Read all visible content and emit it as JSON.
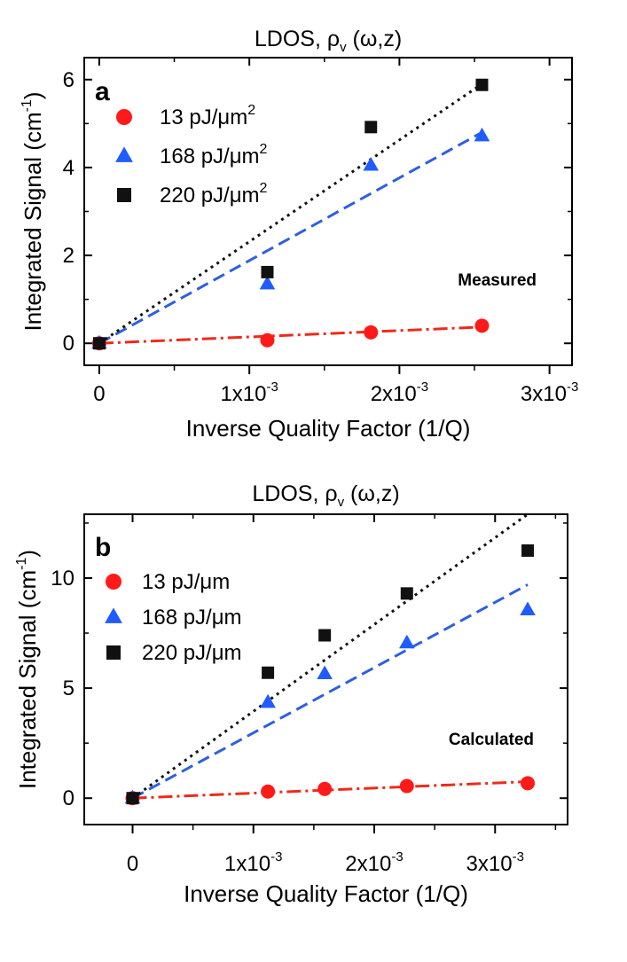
{
  "colors": {
    "red": "#ff1a1a",
    "blue": "#1f5cff",
    "black": "#111111",
    "dash_red": "#ee2a1a",
    "dash_blue": "#2e5fe0"
  },
  "chart_data": [
    {
      "type": "scatter",
      "panel": "a",
      "title_text": "LDOS, ",
      "title_symbol": "ρ",
      "title_subscript": "v",
      "title_args": " (ω,z)",
      "xlabel": "Inverse Quality Factor (1/Q)",
      "ylabel": "Integrated Signal (cm",
      "ylabel_exponent": "-1",
      "ylabel_close": ")",
      "xlim": [
        -0.0001,
        0.00315
      ],
      "ylim": [
        -0.5,
        6.5
      ],
      "yticks": [
        0,
        2,
        4,
        6
      ],
      "ytick_labels": [
        "0",
        "2",
        "4",
        "6"
      ],
      "xticks": [
        0,
        0.001,
        0.002,
        0.003
      ],
      "xtick_labels": [
        {
          "mant": "0",
          "exp": ""
        },
        {
          "mant": "1x10",
          "exp": "-3"
        },
        {
          "mant": "2x10",
          "exp": "-3"
        },
        {
          "mant": "3x10",
          "exp": "-3"
        }
      ],
      "annotation": "Measured",
      "legend_position": "top-left",
      "series": [
        {
          "name": "13 pJ/μm",
          "name_exponent": "2",
          "marker": "circle",
          "color": "red",
          "x": [
            0,
            0.00112,
            0.00181,
            0.00255
          ],
          "y": [
            0.0,
            0.07,
            0.25,
            0.4
          ],
          "fit": {
            "style": "dashdot",
            "color": "dash_red",
            "x": [
              0,
              0.00255
            ],
            "y": [
              0.0,
              0.37
            ]
          }
        },
        {
          "name": "168 pJ/μm",
          "name_exponent": "2",
          "marker": "triangle",
          "color": "blue",
          "x": [
            0,
            0.00112,
            0.00181,
            0.00255
          ],
          "y": [
            0.0,
            1.35,
            4.05,
            4.72
          ],
          "fit": {
            "style": "dashed",
            "color": "dash_blue",
            "x": [
              0,
              0.00255
            ],
            "y": [
              0.0,
              4.8
            ]
          }
        },
        {
          "name": "220 pJ/μm",
          "name_exponent": "2",
          "marker": "square",
          "color": "black",
          "x": [
            0,
            0.00112,
            0.00181,
            0.00255
          ],
          "y": [
            0.0,
            1.62,
            4.92,
            5.88
          ],
          "fit": {
            "style": "dotted",
            "color": "black",
            "x": [
              0,
              0.00255
            ],
            "y": [
              0.0,
              5.9
            ]
          }
        }
      ]
    },
    {
      "type": "scatter",
      "panel": "b",
      "title_text": "LDOS, ",
      "title_symbol": "ρ",
      "title_subscript": "v",
      "title_args": " (ω,z)",
      "xlabel": "Inverse Quality Factor (1/Q)",
      "ylabel": "Integrated Signal (cm",
      "ylabel_exponent": "-1",
      "ylabel_close": ")",
      "xlim": [
        -0.0004,
        0.0036
      ],
      "ylim": [
        -1.2,
        12.9
      ],
      "yticks": [
        0,
        5,
        10
      ],
      "ytick_labels": [
        "0",
        "5",
        "10"
      ],
      "xticks": [
        0,
        0.001,
        0.002,
        0.003
      ],
      "xtick_labels": [
        {
          "mant": "0",
          "exp": ""
        },
        {
          "mant": "1x10",
          "exp": "-3"
        },
        {
          "mant": "2x10",
          "exp": "-3"
        },
        {
          "mant": "3x10",
          "exp": "-3"
        }
      ],
      "annotation": "Calculated",
      "legend_position": "top-left",
      "series": [
        {
          "name": "13 pJ/μm",
          "name_exponent": "",
          "marker": "circle",
          "color": "red",
          "x": [
            0,
            0.00112,
            0.00159,
            0.00227,
            0.00327
          ],
          "y": [
            0.0,
            0.3,
            0.42,
            0.55,
            0.68
          ],
          "fit": {
            "style": "dashdot",
            "color": "dash_red",
            "x": [
              0,
              0.00327
            ],
            "y": [
              0.0,
              0.75
            ]
          }
        },
        {
          "name": "168 pJ/μm",
          "name_exponent": "",
          "marker": "triangle",
          "color": "blue",
          "x": [
            0,
            0.00112,
            0.00159,
            0.00227,
            0.00327
          ],
          "y": [
            0.0,
            4.35,
            5.65,
            7.05,
            8.55
          ],
          "fit": {
            "style": "dashed",
            "color": "dash_blue",
            "x": [
              0,
              0.00327
            ],
            "y": [
              0.0,
              9.7
            ]
          }
        },
        {
          "name": "220 pJ/μm",
          "name_exponent": "",
          "marker": "square",
          "color": "black",
          "x": [
            0,
            0.00112,
            0.00159,
            0.00227,
            0.00327
          ],
          "y": [
            0.0,
            5.7,
            7.4,
            9.3,
            11.25
          ],
          "fit": {
            "style": "dotted",
            "color": "black",
            "x": [
              0,
              0.00327
            ],
            "y": [
              0.0,
              12.9
            ]
          }
        }
      ]
    }
  ]
}
